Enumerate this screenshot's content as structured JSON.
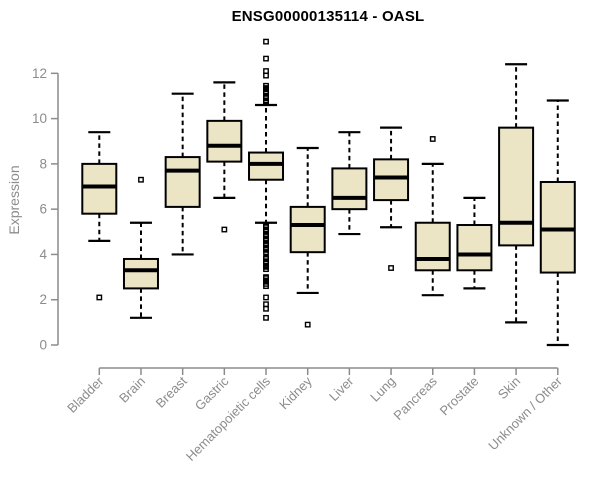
{
  "chart_data": {
    "type": "boxplot",
    "title": "ENSG00000135114 - OASL",
    "ylabel": "Expression",
    "xlabel": "",
    "yticks": [
      0,
      2,
      4,
      6,
      8,
      10,
      12
    ],
    "ylim": [
      0,
      13.4
    ],
    "grid": false,
    "legend": "none",
    "colors": {
      "box_fill": "#EBE5C6",
      "box_stroke": "#000000",
      "median": "#000000",
      "whisker": "#000000",
      "outlier": "#000000",
      "axis": "#8C8C8C",
      "title": "#000000"
    },
    "categories": [
      "Bladder",
      "Brain",
      "Breast",
      "Gastric",
      "Hematopoietic cells",
      "Kidney",
      "Liver",
      "Lung",
      "Pancreas",
      "Prostate",
      "Skin",
      "Unknown / Other"
    ],
    "boxes": [
      {
        "label": "Bladder",
        "whisker_low": 4.6,
        "q1": 5.8,
        "median": 7.0,
        "q3": 8.0,
        "whisker_high": 9.4,
        "outliers": [
          2.1
        ]
      },
      {
        "label": "Brain",
        "whisker_low": 1.2,
        "q1": 2.5,
        "median": 3.3,
        "q3": 3.8,
        "whisker_high": 5.4,
        "outliers": [
          7.3
        ]
      },
      {
        "label": "Breast",
        "whisker_low": 4.0,
        "q1": 6.1,
        "median": 7.7,
        "q3": 8.3,
        "whisker_high": 11.1,
        "outliers": []
      },
      {
        "label": "Gastric",
        "whisker_low": 6.5,
        "q1": 8.1,
        "median": 8.8,
        "q3": 9.9,
        "whisker_high": 11.6,
        "outliers": [
          5.1
        ]
      },
      {
        "label": "Hematopoietic cells",
        "whisker_low": 5.4,
        "q1": 7.3,
        "median": 8.0,
        "q3": 8.5,
        "whisker_high": 10.6,
        "outliers": [
          13.4,
          12.65,
          12.1,
          11.9,
          11.45,
          11.35,
          11.3,
          11.2,
          11.15,
          11.1,
          11.0,
          10.95,
          10.9,
          10.8,
          10.75,
          10.7,
          5.3,
          5.25,
          5.2,
          5.1,
          5.05,
          5.0,
          4.9,
          4.85,
          4.8,
          4.7,
          4.65,
          4.6,
          4.5,
          4.45,
          4.4,
          4.3,
          4.25,
          4.2,
          4.1,
          3.85,
          3.8,
          3.7,
          3.65,
          3.6,
          3.5,
          3.45,
          3.35,
          3.0,
          2.95,
          2.85,
          2.8,
          2.7,
          2.6,
          2.1,
          1.8,
          1.6,
          1.2
        ]
      },
      {
        "label": "Kidney",
        "whisker_low": 2.3,
        "q1": 4.1,
        "median": 5.3,
        "q3": 6.1,
        "whisker_high": 8.7,
        "outliers": [
          0.9
        ]
      },
      {
        "label": "Liver",
        "whisker_low": 4.9,
        "q1": 6.0,
        "median": 6.5,
        "q3": 7.8,
        "whisker_high": 9.4,
        "outliers": []
      },
      {
        "label": "Lung",
        "whisker_low": 5.2,
        "q1": 6.4,
        "median": 7.4,
        "q3": 8.2,
        "whisker_high": 9.6,
        "outliers": [
          3.4
        ]
      },
      {
        "label": "Pancreas",
        "whisker_low": 2.2,
        "q1": 3.3,
        "median": 3.8,
        "q3": 5.4,
        "whisker_high": 8.0,
        "outliers": [
          9.1
        ]
      },
      {
        "label": "Prostate",
        "whisker_low": 2.5,
        "q1": 3.3,
        "median": 4.0,
        "q3": 5.3,
        "whisker_high": 6.5,
        "outliers": []
      },
      {
        "label": "Skin",
        "whisker_low": 1.0,
        "q1": 4.4,
        "median": 5.4,
        "q3": 9.6,
        "whisker_high": 12.4,
        "outliers": []
      },
      {
        "label": "Unknown / Other",
        "whisker_low": 0.0,
        "q1": 3.2,
        "median": 5.1,
        "q3": 7.2,
        "whisker_high": 10.8,
        "outliers": []
      }
    ]
  }
}
